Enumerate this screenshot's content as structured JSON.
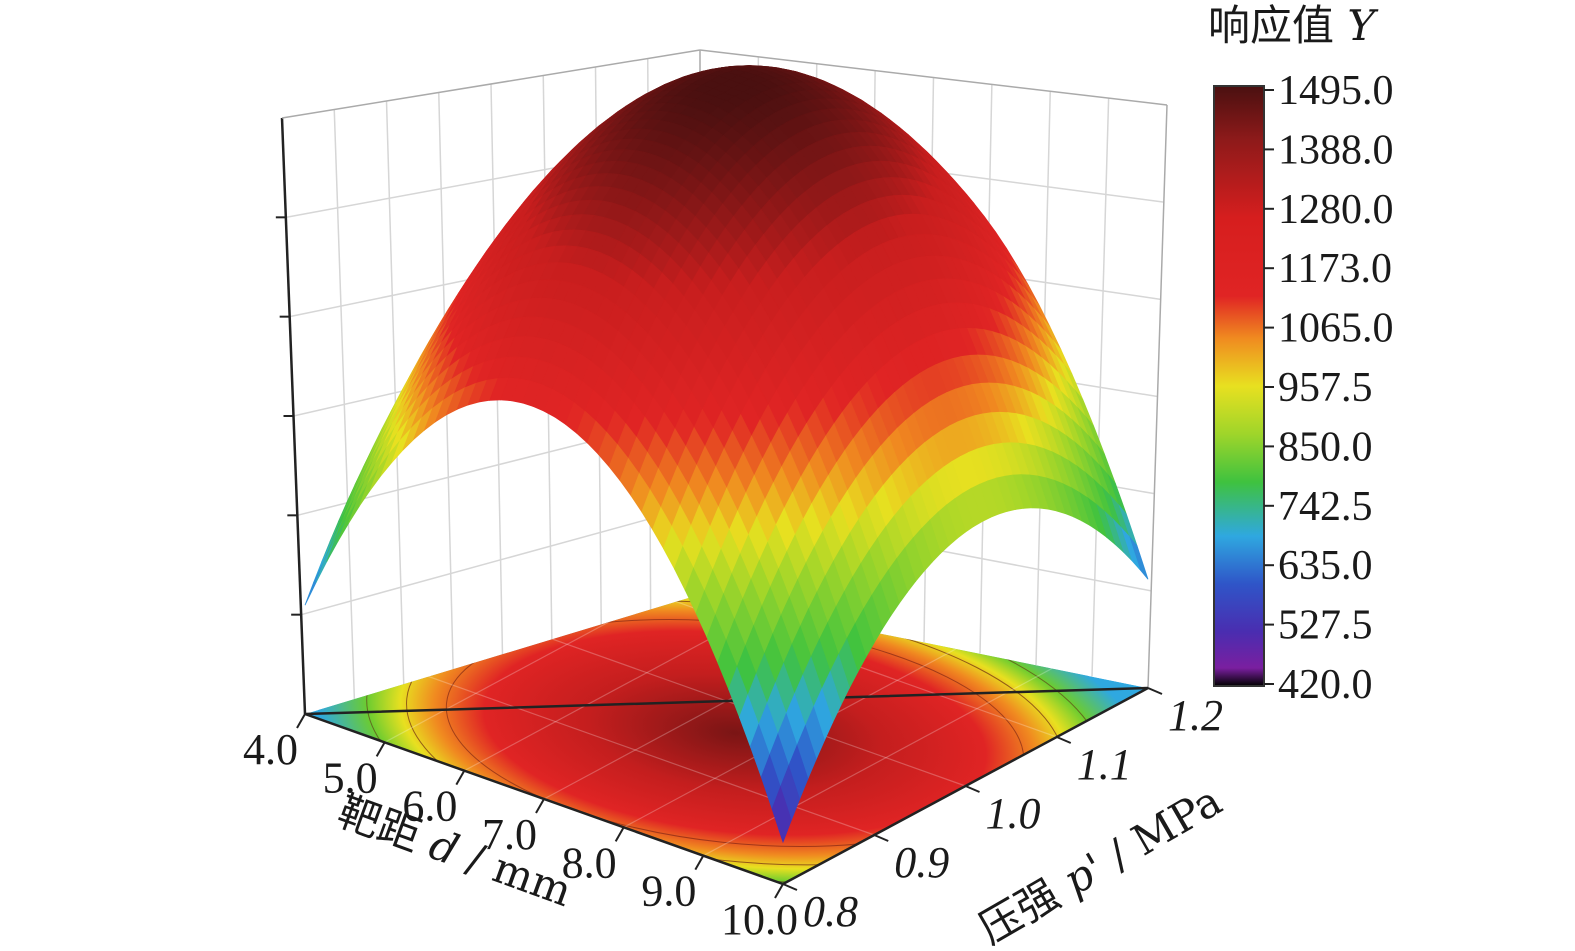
{
  "chart_data": {
    "type": "surface3d",
    "title": "",
    "x_axis": {
      "label_prefix": "靶距 ",
      "label_var": "d",
      "label_suffix": " / mm",
      "ticks": [
        "4.0",
        "5.0",
        "6.0",
        "7.0",
        "8.0",
        "9.0",
        "10.0"
      ],
      "range": [
        4.0,
        10.0
      ]
    },
    "y_axis": {
      "label_prefix": "压强 ",
      "label_var": "p'",
      "label_suffix": " / MPa",
      "ticks": [
        "0.8",
        "0.9",
        "1.0",
        "1.1",
        "1.2"
      ],
      "range": [
        0.8,
        1.2
      ]
    },
    "z_axis": {
      "label": "",
      "range": [
        420.0,
        1495.0
      ],
      "ticks_labeled": false
    },
    "colorbar": {
      "title_prefix": "响应值 ",
      "title_var": "Y",
      "ticks": [
        "1495.0",
        "1388.0",
        "1280.0",
        "1173.0",
        "1065.0",
        "957.5",
        "850.0",
        "742.5",
        "635.0",
        "527.5",
        "420.0"
      ],
      "colors": [
        "#000000",
        "#7a1fa0",
        "#4a2db0",
        "#2f55c8",
        "#2fa8e0",
        "#3fc23f",
        "#9fd52a",
        "#e8e020",
        "#f08a20",
        "#e02020",
        "#b81b1b",
        "#4a1010"
      ]
    },
    "surface": {
      "peak": {
        "d": 7.0,
        "p": 1.0,
        "Y": 1495.0
      },
      "corner_values": {
        "d4_p08": 640.0,
        "d4_p12": 760.0,
        "d10_p08": 420.0,
        "d10_p12": 680.0
      },
      "shape": "dome",
      "contour_projection_on_floor": true,
      "mesh_lines": true
    }
  }
}
